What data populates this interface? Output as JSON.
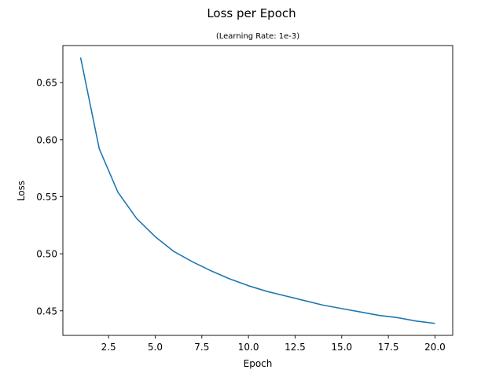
{
  "chart_data": {
    "type": "line",
    "title": "Loss per Epoch",
    "subtitle": "(Learning Rate: 1e-3)",
    "xlabel": "Epoch",
    "ylabel": "Loss",
    "xlim": [
      0.05,
      20.95
    ],
    "ylim": [
      0.4285,
      0.6825
    ],
    "xticks": [
      2.5,
      5.0,
      7.5,
      10.0,
      12.5,
      15.0,
      17.5,
      20.0
    ],
    "xtick_labels": [
      "2.5",
      "5.0",
      "7.5",
      "10.0",
      "12.5",
      "15.0",
      "17.5",
      "20.0"
    ],
    "yticks": [
      0.45,
      0.5,
      0.55,
      0.6,
      0.65
    ],
    "ytick_labels": [
      "0.45",
      "0.50",
      "0.55",
      "0.60",
      "0.65"
    ],
    "grid": false,
    "line_color": "#1f77b4",
    "series": [
      {
        "x": [
          1,
          2,
          3,
          4,
          5,
          6,
          7,
          8,
          9,
          10,
          11,
          12,
          13,
          14,
          15,
          16,
          17,
          18,
          19,
          20
        ],
        "values": [
          0.672,
          0.592,
          0.554,
          0.531,
          0.515,
          0.502,
          0.493,
          0.485,
          0.478,
          0.472,
          0.467,
          0.463,
          0.459,
          0.455,
          0.452,
          0.449,
          0.446,
          0.444,
          0.441,
          0.439
        ]
      }
    ]
  }
}
